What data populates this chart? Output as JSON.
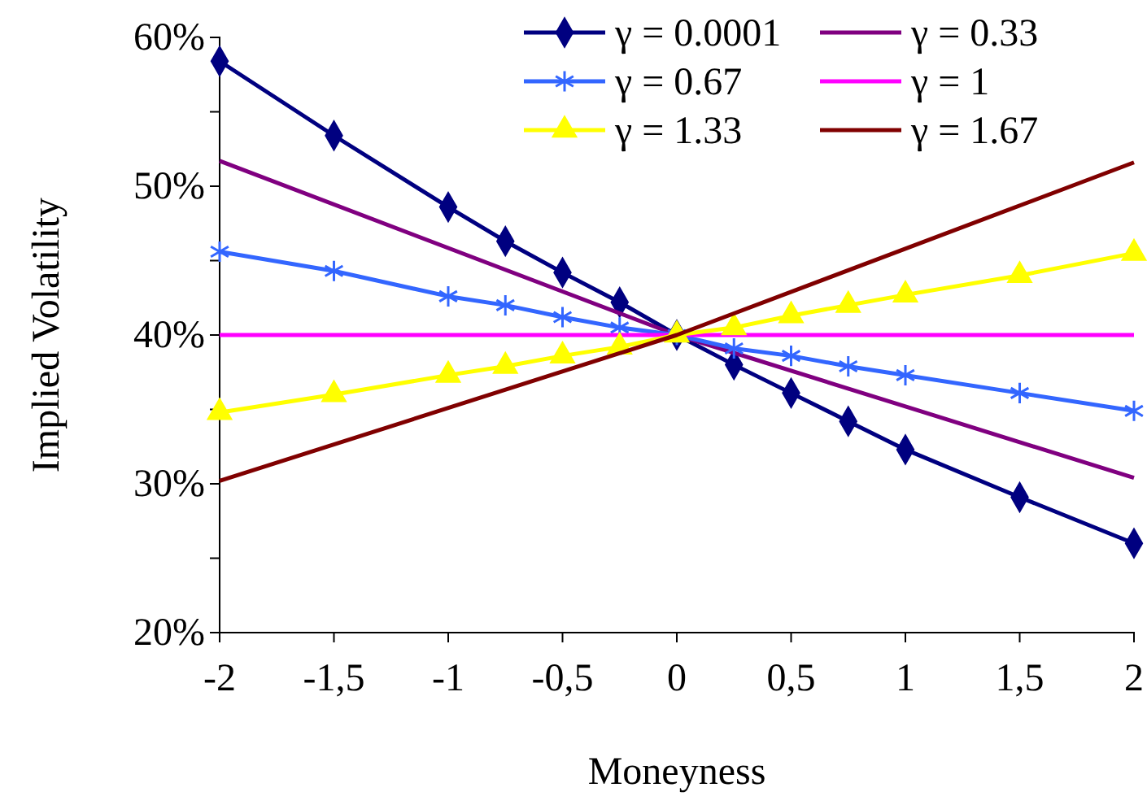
{
  "chart_data": {
    "type": "line",
    "xlabel": "Moneyness",
    "ylabel": "Implied Volatility",
    "xlim": [
      -2,
      2
    ],
    "ylim": [
      20,
      60
    ],
    "xticks": [
      -2,
      {
        "value": -1.5,
        "label": "-1,5"
      },
      -1,
      {
        "value": -0.5,
        "label": "-0,5"
      },
      0,
      {
        "value": 0.5,
        "label": "0,5"
      },
      1,
      {
        "value": 1.5,
        "label": "1,5"
      },
      2
    ],
    "yticks": [
      {
        "value": 20,
        "label": "20%"
      },
      {
        "value": 25,
        "label": null
      },
      {
        "value": 30,
        "label": "30%"
      },
      {
        "value": 35,
        "label": null
      },
      {
        "value": 40,
        "label": "40%"
      },
      {
        "value": 45,
        "label": null
      },
      {
        "value": 50,
        "label": "50%"
      },
      {
        "value": 55,
        "label": null
      },
      {
        "value": 60,
        "label": "60%"
      }
    ],
    "grid": false,
    "legend": "top right",
    "series": [
      {
        "name": "γ = 0.0001",
        "color": "#000080",
        "marker": "diamond",
        "x": [
          -2,
          -1.5,
          -1,
          -0.75,
          -0.5,
          -0.25,
          0,
          0.25,
          0.5,
          0.75,
          1,
          1.5,
          2
        ],
        "values": [
          58.4,
          53.4,
          48.6,
          46.3,
          44.2,
          42.2,
          40,
          38,
          36.1,
          34.2,
          32.3,
          29.1,
          26
        ]
      },
      {
        "name": "γ = 0.33",
        "color": "#800080",
        "marker": "none",
        "x": [
          -2,
          0,
          2
        ],
        "values": [
          51.7,
          40,
          30.4
        ]
      },
      {
        "name": "γ = 0.67",
        "color": "#3366ff",
        "marker": "cross",
        "x": [
          -2,
          -1.5,
          -1,
          -0.75,
          -0.5,
          -0.25,
          0,
          0.25,
          0.5,
          0.75,
          1,
          1.5,
          2
        ],
        "values": [
          45.6,
          44.3,
          42.6,
          42,
          41.2,
          40.5,
          40,
          39.1,
          38.6,
          37.9,
          37.3,
          36.1,
          34.9
        ]
      },
      {
        "name": "γ = 1",
        "color": "#ff00ff",
        "marker": "none",
        "x": [
          -2,
          2
        ],
        "values": [
          40,
          40
        ]
      },
      {
        "name": "γ = 1.33",
        "color": "#ffff00",
        "marker": "triangle",
        "x": [
          -2,
          -1.5,
          -1,
          -0.75,
          -0.5,
          -0.25,
          0,
          0.25,
          0.5,
          0.75,
          1,
          1.5,
          2
        ],
        "values": [
          34.8,
          36,
          37.3,
          37.9,
          38.6,
          39.2,
          40,
          40.5,
          41.3,
          42,
          42.7,
          44,
          45.5
        ]
      },
      {
        "name": "γ = 1.67",
        "color": "#800000",
        "marker": "none",
        "x": [
          -2,
          0,
          2
        ],
        "values": [
          30.2,
          40,
          51.6
        ]
      }
    ]
  }
}
